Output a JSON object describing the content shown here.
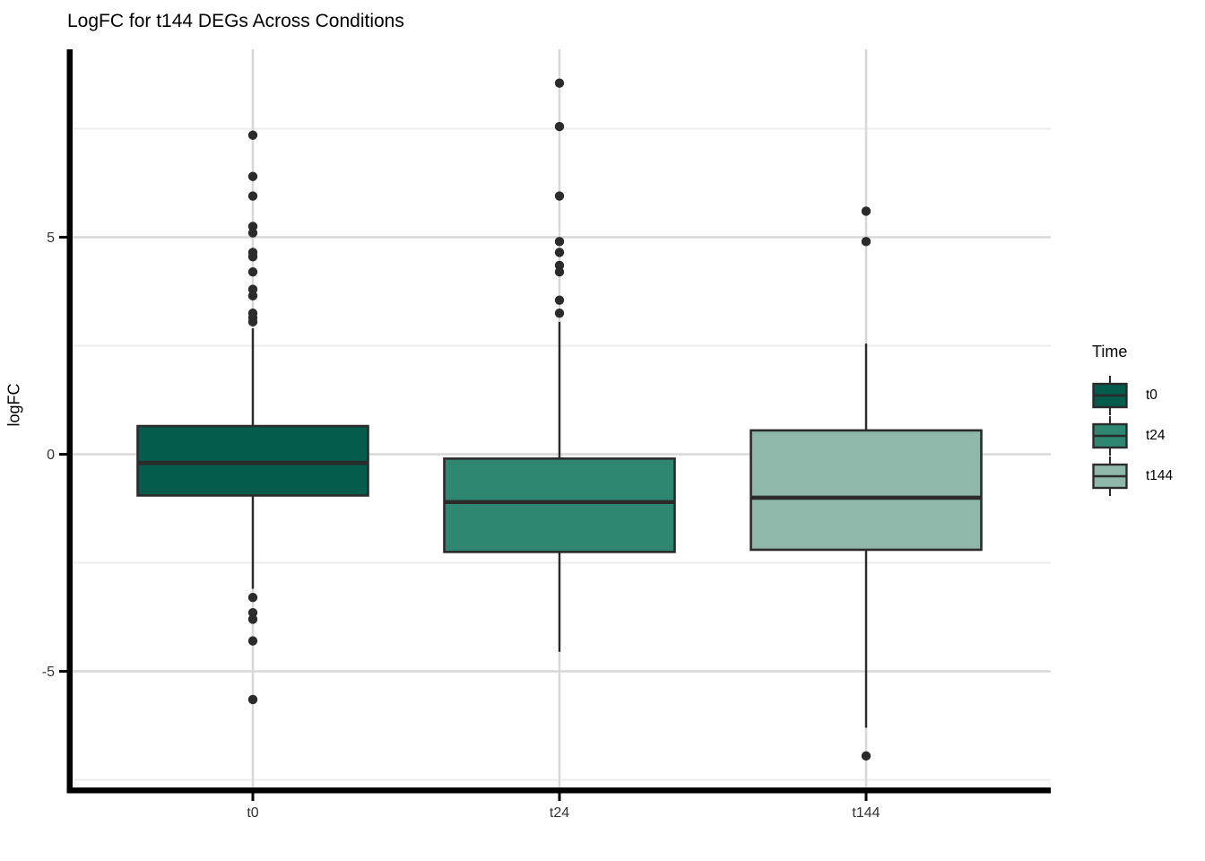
{
  "title": "LogFC for t144 DEGs Across Conditions",
  "axes": {
    "y_label": "logFC",
    "y_tick_labels": [
      "5",
      "0",
      "-5"
    ],
    "x_tick_labels": [
      "t0",
      "t24",
      "t144"
    ]
  },
  "legend": {
    "title": "Time",
    "items": [
      {
        "label": "t0",
        "color": "#055B4C"
      },
      {
        "label": "t24",
        "color": "#2F8772"
      },
      {
        "label": "t144",
        "color": "#8FB8AB"
      }
    ]
  },
  "colors": {
    "box_outline": "#2b2b2b",
    "outlier_point": "#2b2b2b",
    "grid_major": "#d8d8d8",
    "grid_minor": "#ececec",
    "axis_line": "#000000",
    "tick_text": "#333333"
  },
  "chart_data": {
    "type": "boxplot",
    "title": "LogFC for t144 DEGs Across Conditions",
    "xlabel": "",
    "ylabel": "logFC",
    "categories": [
      "t0",
      "t24",
      "t144"
    ],
    "ylim": [
      -7.7,
      9.3
    ],
    "y_major_ticks": [
      5,
      0,
      -5
    ],
    "y_minor_gridlines": [
      7.5,
      2.5,
      -2.5,
      -7.5
    ],
    "grid": "on",
    "x_category_gridlines": true,
    "legend_position": "right",
    "legend_title": "Time",
    "series": [
      {
        "name": "t0",
        "color": "#055B4C",
        "whisker_low": -3.1,
        "q1": -0.95,
        "median": -0.2,
        "q3": 0.65,
        "whisker_high": 2.9,
        "outliers": [
          7.35,
          6.4,
          5.95,
          5.25,
          5.1,
          4.65,
          4.55,
          4.2,
          3.8,
          3.65,
          3.25,
          3.15,
          3.05,
          -3.3,
          -3.65,
          -3.8,
          -4.3,
          -5.65
        ]
      },
      {
        "name": "t24",
        "color": "#2F8772",
        "whisker_low": -4.55,
        "q1": -2.25,
        "median": -1.1,
        "q3": -0.1,
        "whisker_high": 3.05,
        "outliers": [
          8.55,
          7.55,
          5.95,
          4.9,
          4.65,
          4.35,
          4.2,
          3.55,
          3.25
        ]
      },
      {
        "name": "t144",
        "color": "#8FB8AB",
        "whisker_low": -6.3,
        "q1": -2.2,
        "median": -1.0,
        "q3": 0.55,
        "whisker_high": 2.55,
        "outliers": [
          5.6,
          4.9,
          -6.95
        ]
      }
    ]
  }
}
